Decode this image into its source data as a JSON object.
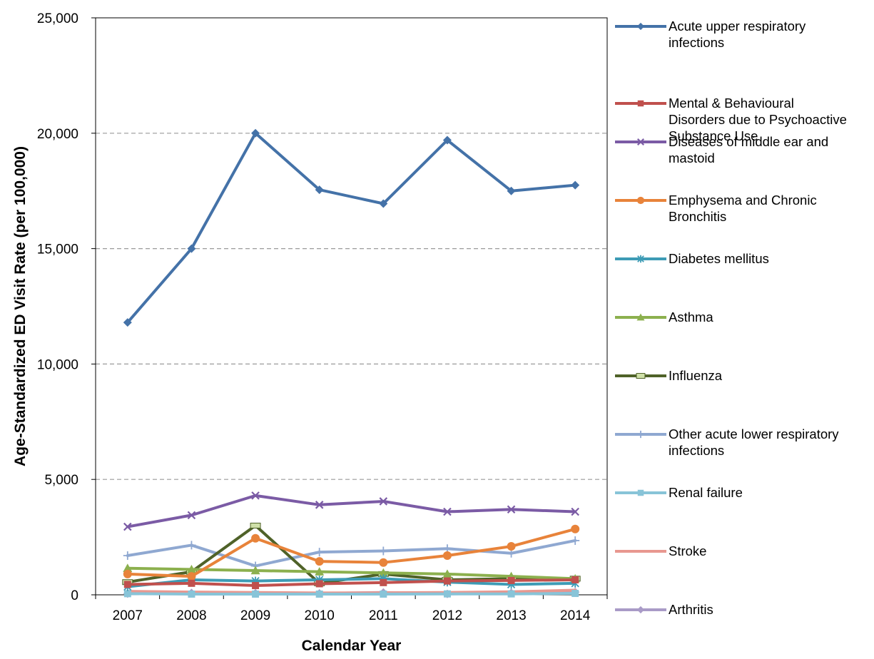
{
  "chart_data": {
    "type": "line",
    "title": "",
    "xlabel": "Calendar Year",
    "ylabel": "Age-Standardized ED Visit Rate (per 100,000)",
    "categories": [
      "2007",
      "2008",
      "2009",
      "2010",
      "2011",
      "2012",
      "2013",
      "2014"
    ],
    "ylim": [
      0,
      25000
    ],
    "yticks": [
      0,
      5000,
      10000,
      15000,
      20000,
      25000
    ],
    "ytick_labels": [
      "0",
      "5,000",
      "10,000",
      "15,000",
      "20,000",
      "25,000"
    ],
    "grid": "horizontal dashed",
    "legend_position": "right",
    "series": [
      {
        "name": "Acute upper respiratory infections",
        "color": "#4472a8",
        "marker": "diamond",
        "values": [
          11800,
          15000,
          20000,
          17550,
          16950,
          19700,
          17500,
          17750
        ]
      },
      {
        "name": "Mental & Behavioural Disorders due to Psychoactive Substance Use",
        "color": "#c0504d",
        "marker": "square",
        "values": [
          450,
          500,
          400,
          480,
          530,
          600,
          620,
          650
        ]
      },
      {
        "name": "Diseases of middle ear and mastoid",
        "color": "#7b5ba5",
        "marker": "x",
        "values": [
          2950,
          3450,
          4300,
          3900,
          4050,
          3600,
          3700,
          3600
        ]
      },
      {
        "name": "Emphysema and Chronic Bronchitis",
        "color": "#e8833a",
        "marker": "circle",
        "values": [
          900,
          800,
          2450,
          1450,
          1400,
          1700,
          2100,
          2850
        ]
      },
      {
        "name": "Diabetes mellitus",
        "color": "#3d9bb5",
        "marker": "star",
        "values": [
          350,
          650,
          600,
          650,
          700,
          550,
          450,
          500
        ]
      },
      {
        "name": "Asthma",
        "color": "#8cb04e",
        "marker": "triangle",
        "values": [
          1150,
          1100,
          1050,
          1000,
          950,
          900,
          800,
          700
        ]
      },
      {
        "name": "Influenza",
        "color": "#4f6228",
        "marker": "dash",
        "values": [
          550,
          1000,
          3000,
          500,
          900,
          650,
          700,
          700
        ]
      },
      {
        "name": "Other acute lower respiratory infections",
        "color": "#8fa8d1",
        "marker": "plus",
        "values": [
          1700,
          2150,
          1250,
          1850,
          1900,
          2000,
          1800,
          2350
        ]
      },
      {
        "name": "Renal failure",
        "color": "#88c4d8",
        "marker": "square",
        "values": [
          50,
          30,
          30,
          30,
          30,
          40,
          40,
          60
        ]
      },
      {
        "name": "Stroke",
        "color": "#e89890",
        "marker": "none",
        "values": [
          150,
          120,
          100,
          80,
          90,
          100,
          130,
          200
        ]
      },
      {
        "name": "Arthritis",
        "color": "#a99bc7",
        "marker": "diamond",
        "values": [
          50,
          80,
          70,
          60,
          100,
          40,
          80,
          120
        ]
      }
    ]
  }
}
